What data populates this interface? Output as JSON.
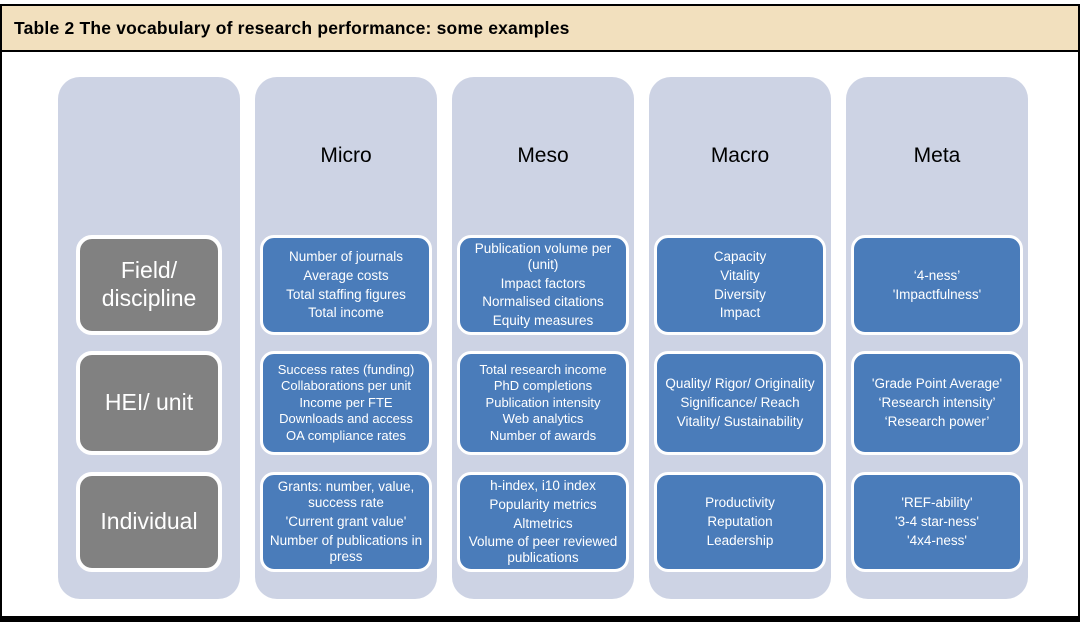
{
  "table": {
    "title": "Table 2 The vocabulary of research performance: some examples",
    "column_headers": [
      "Micro",
      "Meso",
      "Macro",
      "Meta"
    ],
    "rows": [
      {
        "header_lines": [
          "Field/",
          "discipline"
        ],
        "cells": {
          "micro": [
            "Number of journals",
            "Average costs",
            "Total staffing figures",
            "Total income"
          ],
          "meso": [
            "Publication volume per (unit)",
            "Impact factors",
            "Normalised citations",
            "Equity measures"
          ],
          "macro": [
            "Capacity",
            "Vitality",
            "Diversity",
            "Impact"
          ],
          "meta": [
            "‘4-ness’",
            "'Impactfulness'"
          ]
        }
      },
      {
        "header_lines": [
          "HEI/ unit"
        ],
        "cells": {
          "micro": [
            "Success rates (funding)",
            "Collaborations per unit",
            "Income per FTE",
            "Downloads and access",
            "OA compliance rates"
          ],
          "meso": [
            "Total research income",
            "PhD completions",
            "Publication intensity",
            "Web analytics",
            "Number of awards"
          ],
          "macro": [
            "Quality/ Rigor/ Originality",
            "Significance/ Reach",
            "Vitality/ Sustainability"
          ],
          "meta": [
            "'Grade Point Average'",
            "‘Research intensity’",
            "‘Research power’"
          ]
        }
      },
      {
        "header_lines": [
          "Individual"
        ],
        "cells": {
          "micro": [
            "Grants: number, value, success rate",
            "'Current grant value'",
            "Number of publications in press"
          ],
          "meso": [
            "h-index, i10 index",
            "Popularity metrics",
            "Altmetrics",
            "Volume of peer reviewed publications"
          ],
          "macro": [
            "Productivity",
            "Reputation",
            "Leadership"
          ],
          "meta": [
            "'REF-ability'",
            "'3-4 star-ness'",
            "'4x4-ness'"
          ]
        }
      }
    ],
    "colors": {
      "title_bg": "#f2e0be",
      "column_bg": "#cdd3e4",
      "cell_blue": "#4a7cba",
      "row_header_gray": "#818181",
      "text_light": "#ffffff",
      "text_dark": "#000000",
      "border": "#000000"
    }
  }
}
